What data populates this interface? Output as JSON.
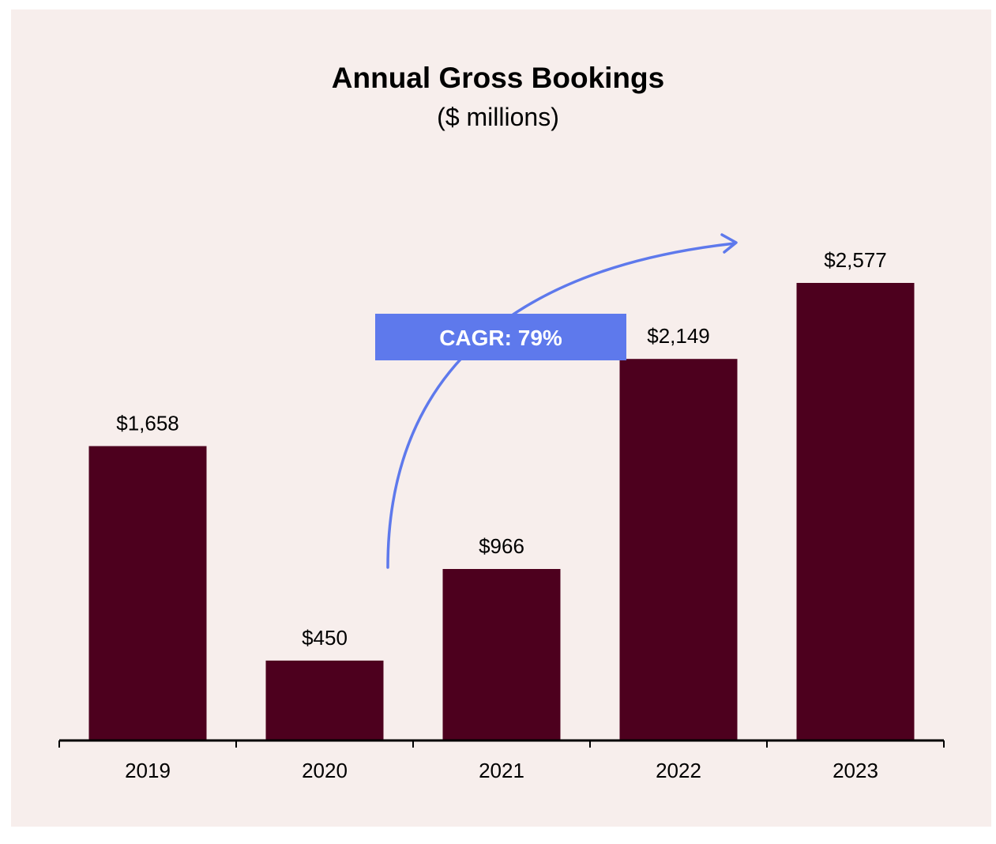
{
  "colors": {
    "background": "#f7eeec",
    "bar": "#4d001e",
    "accent": "#5e79ec",
    "text": "#000000"
  },
  "chart_data": {
    "type": "bar",
    "title": "Annual Gross Bookings",
    "subtitle": "($ millions)",
    "categories": [
      "2019",
      "2020",
      "2021",
      "2022",
      "2023"
    ],
    "values": [
      1658,
      450,
      966,
      2149,
      2577
    ],
    "value_labels": [
      "$1,658",
      "$450",
      "$966",
      "$2,149",
      "$2,577"
    ],
    "ylim": [
      0,
      2577
    ],
    "grid": false,
    "legend": "none",
    "annotation": {
      "text": "CAGR: 79%",
      "arrow": "curved",
      "from_category": "2020",
      "to_category": "2023"
    }
  }
}
